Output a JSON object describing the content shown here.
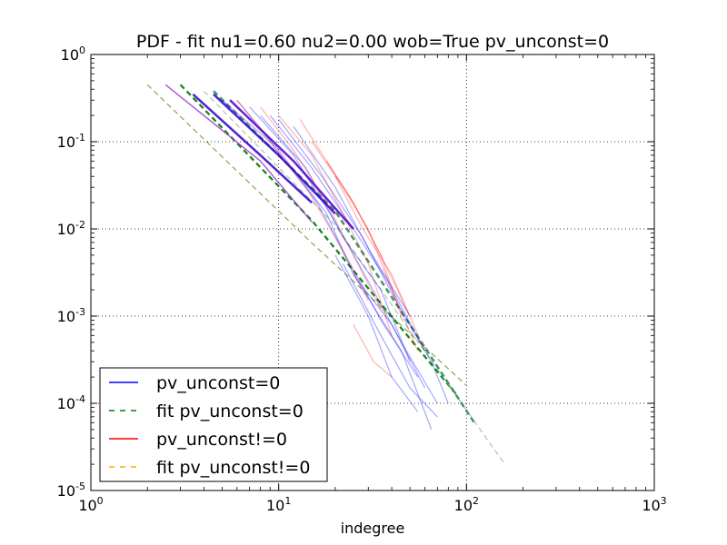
{
  "chart_data": {
    "type": "line",
    "title": "PDF - fit nu1=0.60 nu2=0.00 wob=True pv_unconst=0",
    "xlabel": "indegree",
    "ylabel": "",
    "x_scale": "log",
    "y_scale": "log",
    "xlim": [
      1,
      1000
    ],
    "ylim": [
      1e-05,
      1
    ],
    "grid": true,
    "legend_position": "lower-left",
    "x_ticks": [
      {
        "value": 1,
        "base": "10",
        "exp": "0"
      },
      {
        "value": 10,
        "base": "10",
        "exp": "1"
      },
      {
        "value": 100,
        "base": "10",
        "exp": "2"
      },
      {
        "value": 1000,
        "base": "10",
        "exp": "3"
      }
    ],
    "y_ticks": [
      {
        "value": 1,
        "base": "10",
        "exp": "0"
      },
      {
        "value": 0.1,
        "base": "10",
        "exp": "-1"
      },
      {
        "value": 0.01,
        "base": "10",
        "exp": "-2"
      },
      {
        "value": 0.001,
        "base": "10",
        "exp": "-3"
      },
      {
        "value": 0.0001,
        "base": "10",
        "exp": "-4"
      },
      {
        "value": 1e-05,
        "base": "10",
        "exp": "-5"
      }
    ],
    "legend": [
      {
        "label": "pv_unconst=0",
        "color": "#0000ff",
        "dash": false
      },
      {
        "label": "fit pv_unconst=0",
        "color": "#008000",
        "dash": true
      },
      {
        "label": "pv_unconst!=0",
        "color": "#ff0000",
        "dash": false
      },
      {
        "label": "fit pv_unconst!=0",
        "color": "#ffa500",
        "dash": true
      }
    ],
    "series": [
      {
        "name": "fit pv_unconst=0",
        "color": "#6b8e23",
        "dash": true,
        "width": 1.2,
        "opacity": 0.8,
        "x": [
          2,
          15,
          100
        ],
        "y": [
          0.45,
          0.0069,
          0.00016
        ]
      },
      {
        "name": "fit pv_unconst=0",
        "color": "#008000",
        "dash": true,
        "width": 2.2,
        "opacity": 0.95,
        "x": [
          3,
          15,
          90
        ],
        "y": [
          0.45,
          0.0125,
          0.00012
        ]
      },
      {
        "name": "fit pv_unconst=0",
        "color": "#8fbc8f",
        "dash": true,
        "width": 1.2,
        "opacity": 0.8,
        "x": [
          4,
          20,
          160
        ],
        "y": [
          0.38,
          0.011,
          2e-05
        ]
      },
      {
        "name": "fit pv_unconst=0",
        "color": "#2e8b57",
        "dash": true,
        "width": 2.5,
        "opacity": 0.9,
        "x": [
          4.5,
          20,
          110
        ],
        "y": [
          0.38,
          0.016,
          6e-05
        ]
      },
      {
        "name": "pv_unconst=0",
        "color": "#9932cc",
        "dash": false,
        "width": 1.5,
        "opacity": 0.8,
        "x": [
          2.5,
          8,
          15
        ],
        "y": [
          0.45,
          0.06,
          0.012
        ]
      },
      {
        "name": "pv_unconst=0",
        "color": "#3a0bcf",
        "dash": false,
        "width": 2.5,
        "opacity": 0.9,
        "x": [
          3.5,
          8,
          15
        ],
        "y": [
          0.35,
          0.07,
          0.02
        ]
      },
      {
        "name": "pv_unconst=0",
        "color": "#3a0bcf",
        "dash": false,
        "width": 2.5,
        "opacity": 0.9,
        "x": [
          4.5,
          10,
          20
        ],
        "y": [
          0.35,
          0.07,
          0.015
        ]
      },
      {
        "name": "pv_unconst=0",
        "color": "#5a0ccf",
        "dash": false,
        "width": 2.5,
        "opacity": 0.9,
        "x": [
          5.5,
          12,
          25
        ],
        "y": [
          0.3,
          0.06,
          0.01
        ]
      },
      {
        "name": "pv_unconst=0",
        "color": "#0000ff",
        "dash": false,
        "width": 1.2,
        "opacity": 0.35,
        "x": [
          6,
          10,
          18,
          25,
          40,
          60
        ],
        "y": [
          0.3,
          0.08,
          0.015,
          0.003,
          0.0008,
          0.00015
        ]
      },
      {
        "name": "pv_unconst=0",
        "color": "#0000ff",
        "dash": false,
        "width": 1.2,
        "opacity": 0.35,
        "x": [
          7,
          12,
          20,
          30,
          45,
          70
        ],
        "y": [
          0.25,
          0.07,
          0.012,
          0.0025,
          0.0005,
          0.0001
        ]
      },
      {
        "name": "pv_unconst=0",
        "color": "#0000ff",
        "dash": false,
        "width": 1.2,
        "opacity": 0.35,
        "x": [
          8,
          14,
          22,
          35,
          50
        ],
        "y": [
          0.2,
          0.05,
          0.008,
          0.002,
          0.0003
        ]
      },
      {
        "name": "pv_unconst=0",
        "color": "#0000ff",
        "dash": false,
        "width": 1.2,
        "opacity": 0.35,
        "x": [
          5,
          9,
          16,
          24,
          35,
          55
        ],
        "y": [
          0.3,
          0.1,
          0.02,
          0.004,
          0.0009,
          0.0002
        ]
      },
      {
        "name": "pv_unconst=0",
        "color": "#0000ff",
        "dash": false,
        "width": 1.2,
        "opacity": 0.35,
        "x": [
          9,
          15,
          25,
          38,
          60
        ],
        "y": [
          0.2,
          0.05,
          0.01,
          0.0025,
          0.0004
        ]
      },
      {
        "name": "pv_unconst=0",
        "color": "#0000ff",
        "dash": false,
        "width": 1.2,
        "opacity": 0.35,
        "x": [
          10,
          17,
          28,
          42,
          65,
          80
        ],
        "y": [
          0.18,
          0.04,
          0.008,
          0.0015,
          0.0003,
          0.0001
        ]
      },
      {
        "name": "pv_unconst=0",
        "color": "#0000ff",
        "dash": false,
        "width": 1.2,
        "opacity": 0.35,
        "x": [
          12,
          20,
          30,
          50
        ],
        "y": [
          0.15,
          0.03,
          0.006,
          0.001
        ]
      },
      {
        "name": "pv_unconst=0",
        "color": "#0000ff",
        "dash": false,
        "width": 1.2,
        "opacity": 0.35,
        "x": [
          20,
          30,
          40,
          55
        ],
        "y": [
          0.005,
          0.001,
          0.0002,
          8e-05
        ]
      },
      {
        "name": "pv_unconst=0",
        "color": "#0000ff",
        "dash": false,
        "width": 1.2,
        "opacity": 0.35,
        "x": [
          22,
          35,
          50,
          70
        ],
        "y": [
          0.004,
          0.0006,
          0.00015,
          7e-05
        ]
      },
      {
        "name": "pv_unconst=0",
        "color": "#0000ff",
        "dash": false,
        "width": 1.2,
        "opacity": 0.35,
        "x": [
          25,
          45,
          65
        ],
        "y": [
          0.003,
          0.0004,
          5e-05
        ]
      },
      {
        "name": "pv_unconst!=0",
        "color": "#ff0000",
        "dash": false,
        "width": 1.2,
        "opacity": 0.3,
        "x": [
          6,
          9,
          14,
          20,
          30
        ],
        "y": [
          0.3,
          0.1,
          0.03,
          0.008,
          0.0015
        ]
      },
      {
        "name": "pv_unconst!=0",
        "color": "#ff0000",
        "dash": false,
        "width": 1.2,
        "opacity": 0.3,
        "x": [
          8,
          12,
          18,
          25,
          35
        ],
        "y": [
          0.25,
          0.08,
          0.02,
          0.005,
          0.0012
        ]
      },
      {
        "name": "pv_unconst!=0",
        "color": "#ff0000",
        "dash": false,
        "width": 1.2,
        "opacity": 0.3,
        "x": [
          10,
          15,
          22,
          30,
          40
        ],
        "y": [
          0.2,
          0.07,
          0.015,
          0.004,
          0.0006
        ]
      },
      {
        "name": "pv_unconst!=0",
        "color": "#ff0000",
        "dash": false,
        "width": 1.2,
        "opacity": 0.3,
        "x": [
          13,
          18,
          25,
          35,
          45
        ],
        "y": [
          0.18,
          0.06,
          0.02,
          0.005,
          0.001
        ]
      },
      {
        "name": "pv_unconst!=0",
        "color": "#ff0000",
        "dash": false,
        "width": 1.2,
        "opacity": 0.3,
        "x": [
          15,
          22,
          30,
          40,
          55
        ],
        "y": [
          0.1,
          0.03,
          0.01,
          0.002,
          0.0004
        ]
      },
      {
        "name": "pv_unconst!=0",
        "color": "#ff0000",
        "dash": false,
        "width": 1.2,
        "opacity": 0.3,
        "x": [
          18,
          25,
          35,
          50
        ],
        "y": [
          0.06,
          0.02,
          0.005,
          0.001
        ]
      },
      {
        "name": "pv_unconst!=0",
        "color": "#ff0000",
        "dash": false,
        "width": 1.2,
        "opacity": 0.3,
        "x": [
          20,
          28,
          40,
          60
        ],
        "y": [
          0.04,
          0.01,
          0.003,
          0.0004
        ]
      },
      {
        "name": "pv_unconst!=0",
        "color": "#ff0000",
        "dash": false,
        "width": 1.2,
        "opacity": 0.3,
        "x": [
          25,
          32,
          40
        ],
        "y": [
          0.0008,
          0.0003,
          0.0002
        ]
      }
    ]
  }
}
